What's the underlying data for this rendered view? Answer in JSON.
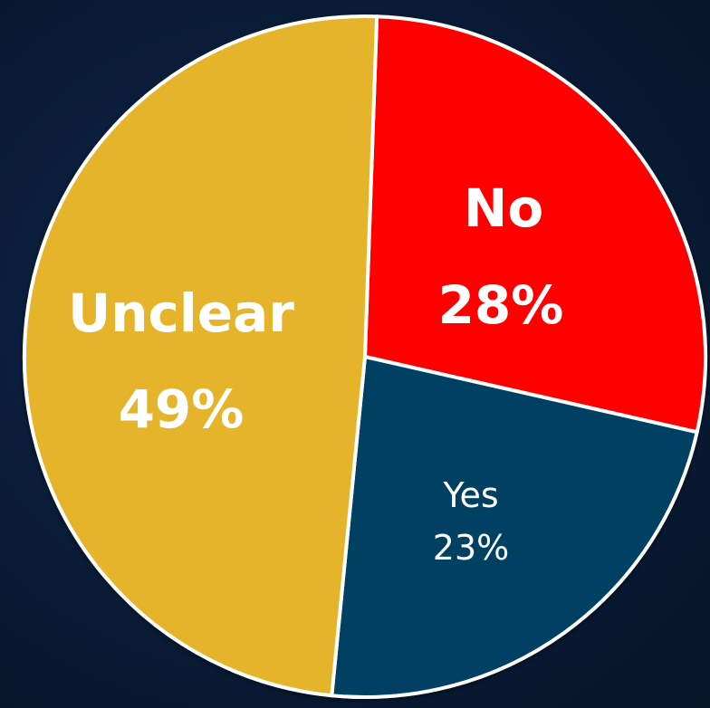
{
  "chart_data": {
    "type": "pie",
    "title": "",
    "slices": [
      {
        "label": "No",
        "value": 28,
        "value_text": "28%",
        "color": "#ff0000",
        "emphasis": "bold"
      },
      {
        "label": "Yes",
        "value": 23,
        "value_text": "23%",
        "color": "#003f63",
        "emphasis": "normal"
      },
      {
        "label": "Unclear",
        "value": 49,
        "value_text": "49%",
        "color": "#e6b429",
        "emphasis": "bold"
      }
    ],
    "start_angle_deg": 2,
    "direction": "clockwise",
    "slice_border_color": "#ffffff",
    "legend": "none"
  }
}
